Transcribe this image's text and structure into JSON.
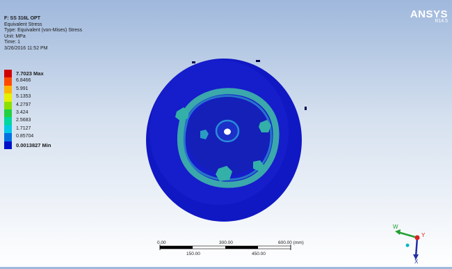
{
  "info": {
    "title": "F: SS 316L OPT",
    "result": "Equivalent Stress",
    "type": "Type: Equivalent (von-Mises) Stress",
    "unit": "Unit: MPa",
    "time": "Time: 1",
    "date": "3/26/2016 11:52 PM"
  },
  "legend": [
    {
      "label": "7.7023 Max",
      "color": "#d00000",
      "bold": true
    },
    {
      "label": "6.8466",
      "color": "#ff4a00",
      "bold": false
    },
    {
      "label": "5.991",
      "color": "#ffb400",
      "bold": false
    },
    {
      "label": "5.1353",
      "color": "#e6f000",
      "bold": false
    },
    {
      "label": "4.2797",
      "color": "#8ce000",
      "bold": false
    },
    {
      "label": "3.424",
      "color": "#22d040",
      "bold": false
    },
    {
      "label": "2.5683",
      "color": "#00d6a0",
      "bold": false
    },
    {
      "label": "1.7127",
      "color": "#00c8e6",
      "bold": false
    },
    {
      "label": "0.85704",
      "color": "#0070e0",
      "bold": false
    },
    {
      "label": "0.0013827 Min",
      "color": "#0010c8",
      "bold": true
    }
  ],
  "brand": {
    "name": "ANSYS",
    "version": "R14.5"
  },
  "scale": {
    "top_labels": [
      "0.00",
      "300.00",
      "600.00 (mm)"
    ],
    "bottom_labels": [
      "150.00",
      "450.00"
    ]
  },
  "triad": {
    "labels": [
      "W",
      "Y",
      "X"
    ],
    "colors": {
      "x": "#1f2fa8",
      "y": "#dd2222",
      "z": "#22a033"
    }
  }
}
